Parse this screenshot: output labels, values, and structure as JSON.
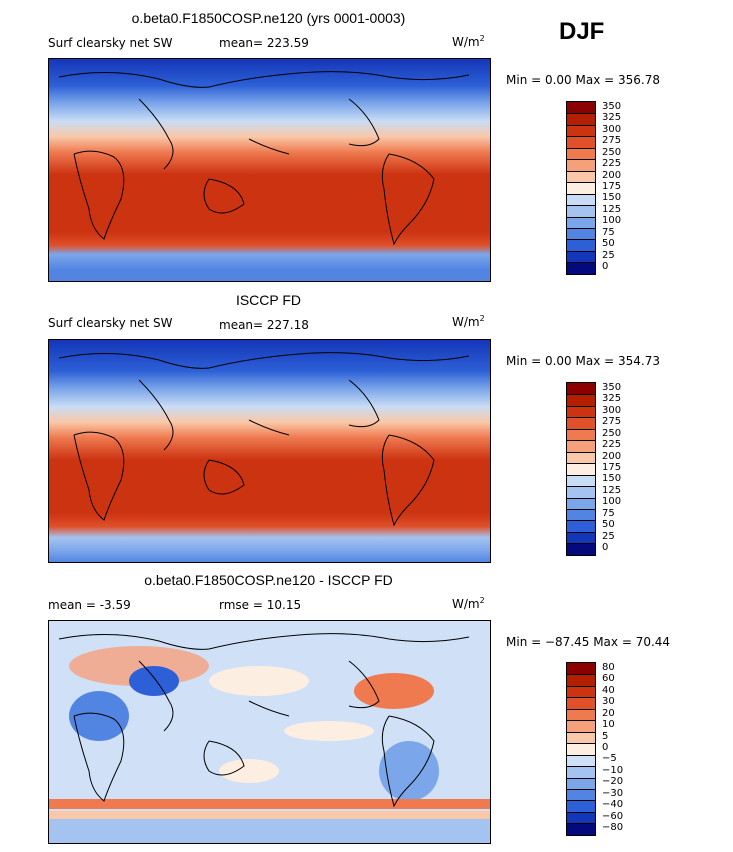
{
  "season": "DJF",
  "panels": [
    {
      "title": "o.beta0.F1850COSP.ne120 (yrs 0001-0003)",
      "left_label": "Surf clearsky net SW",
      "mid_label": "mean= 223.59",
      "units": "W/m",
      "units_sup": "2",
      "minmax": "Min =    0.00 Max =  356.78",
      "levels": [
        "350",
        "325",
        "300",
        "275",
        "250",
        "225",
        "200",
        "175",
        "150",
        "125",
        "100",
        "75",
        "50",
        "25",
        "0"
      ]
    },
    {
      "title": "ISCCP FD",
      "left_label": "Surf clearsky net SW",
      "mid_label": "mean= 227.18",
      "units": "W/m",
      "units_sup": "2",
      "minmax": "Min =    0.00 Max =  354.73",
      "levels": [
        "350",
        "325",
        "300",
        "275",
        "250",
        "225",
        "200",
        "175",
        "150",
        "125",
        "100",
        "75",
        "50",
        "25",
        "0"
      ]
    },
    {
      "title": "o.beta0.F1850COSP.ne120 - ISCCP FD",
      "left_label": "mean =    -3.59",
      "mid_label": "rmse =    10.15",
      "units": "W/m",
      "units_sup": "2",
      "minmax": "Min = −87.45 Max =  70.44",
      "levels": [
        "80",
        "60",
        "40",
        "30",
        "20",
        "10",
        "5",
        "0",
        "−5",
        "−10",
        "−20",
        "−30",
        "−40",
        "−60",
        "−80"
      ]
    }
  ],
  "chart_data": [
    {
      "type": "heatmap",
      "title": "o.beta0.F1850COSP.ne120 (yrs 0001-0003)",
      "variable": "Surf clearsky net SW",
      "units": "W/m2",
      "mean": 223.59,
      "min": 0.0,
      "max": 356.78,
      "colorbar_levels": [
        350,
        325,
        300,
        275,
        250,
        225,
        200,
        175,
        150,
        125,
        100,
        75,
        50,
        25,
        0
      ]
    },
    {
      "type": "heatmap",
      "title": "ISCCP FD",
      "variable": "Surf clearsky net SW",
      "units": "W/m2",
      "mean": 227.18,
      "min": 0.0,
      "max": 354.73,
      "colorbar_levels": [
        350,
        325,
        300,
        275,
        250,
        225,
        200,
        175,
        150,
        125,
        100,
        75,
        50,
        25,
        0
      ]
    },
    {
      "type": "heatmap",
      "title": "o.beta0.F1850COSP.ne120 - ISCCP FD",
      "units": "W/m2",
      "mean": -3.59,
      "rmse": 10.15,
      "min": -87.45,
      "max": 70.44,
      "colorbar_levels": [
        80,
        60,
        40,
        30,
        20,
        10,
        5,
        0,
        -5,
        -10,
        -20,
        -30,
        -40,
        -60,
        -80
      ]
    }
  ],
  "colors": {
    "abs": [
      "#8b0000",
      "#b22000",
      "#cc3311",
      "#e0502a",
      "#ef7a50",
      "#f5a07a",
      "#f9c8a8",
      "#fdeee2",
      "#c9dcf5",
      "#a5c3f0",
      "#7ba6ea",
      "#5285e2",
      "#2d60d6",
      "#1436b8",
      "#05097e"
    ],
    "diff": [
      "#8b0000",
      "#b22000",
      "#cc3311",
      "#e0502a",
      "#ef7a50",
      "#f5a07a",
      "#f9c8a8",
      "#fdeee2",
      "#cfe0f7",
      "#a5c3f0",
      "#7ba6ea",
      "#5285e2",
      "#2d60d6",
      "#1436b8",
      "#05097e"
    ]
  }
}
